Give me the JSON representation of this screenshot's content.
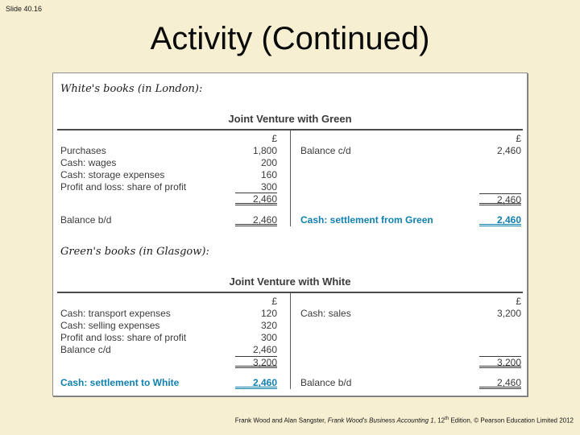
{
  "slide_number": "Slide 40.16",
  "title": "Activity (Continued)",
  "colors": {
    "background": "#F6EFD2",
    "accent_teal": "#1180AE"
  },
  "footer": {
    "authors": "Frank Wood and Alan Sangster, ",
    "book_title": "Frank Wood's Business Accounting 1",
    "edition_pre": ", 12",
    "edition_sup": "th",
    "edition_post": " Edition, © Pearson Education Limited 2012"
  },
  "accounts": [
    {
      "book_heading": "White's books (in London):",
      "account_title": "Joint Venture with Green",
      "currency_symbol": "£",
      "debit": {
        "rows": [
          {
            "label": "Purchases",
            "amount": "1,800"
          },
          {
            "label": "Cash: wages",
            "amount": "200"
          },
          {
            "label": "Cash: storage expenses",
            "amount": "160"
          },
          {
            "label": "Profit and loss: share of profit",
            "amount": "300"
          },
          {
            "label": "",
            "amount": "2,460"
          }
        ],
        "closing": {
          "label": "Balance b/d",
          "amount": "2,460"
        }
      },
      "credit": {
        "rows": [
          {
            "label": "Balance c/d",
            "amount": "2,460"
          },
          {
            "label": "",
            "amount": ""
          },
          {
            "label": "",
            "amount": ""
          },
          {
            "label": "",
            "amount": ""
          },
          {
            "label": "",
            "amount": "2,460"
          }
        ],
        "closing": {
          "label": "Cash: settlement from Green",
          "amount": "2,460"
        }
      }
    },
    {
      "book_heading": "Green's books (in Glasgow):",
      "account_title": "Joint Venture with White",
      "currency_symbol": "£",
      "debit": {
        "rows": [
          {
            "label": "Cash: transport expenses",
            "amount": "120"
          },
          {
            "label": "Cash: selling expenses",
            "amount": "320"
          },
          {
            "label": "Profit and loss: share of profit",
            "amount": "300"
          },
          {
            "label": "Balance c/d",
            "amount": "2,460"
          },
          {
            "label": "",
            "amount": "3,200"
          }
        ],
        "closing": {
          "label": "Cash: settlement to White",
          "amount": "2,460"
        }
      },
      "credit": {
        "rows": [
          {
            "label": "Cash: sales",
            "amount": "3,200"
          },
          {
            "label": "",
            "amount": ""
          },
          {
            "label": "",
            "amount": ""
          },
          {
            "label": "",
            "amount": ""
          },
          {
            "label": "",
            "amount": "3,200"
          }
        ],
        "closing": {
          "label": "Balance b/d",
          "amount": "2,460"
        }
      }
    }
  ]
}
